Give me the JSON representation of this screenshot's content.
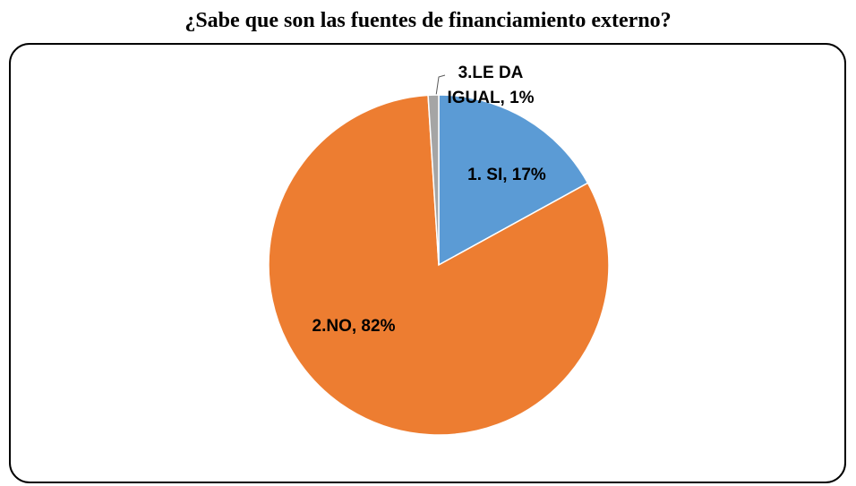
{
  "chart_data": {
    "type": "pie",
    "title": "¿Sabe que son las fuentes de financiamiento externo?",
    "values": [
      17,
      82,
      1
    ],
    "value_labels": [
      "1. SI, 17%",
      "2.NO, 82%",
      "3.LE DA IGUAL, 1%"
    ],
    "colors": [
      "#5b9bd5",
      "#ed7d31",
      "#a5a5a5"
    ]
  }
}
